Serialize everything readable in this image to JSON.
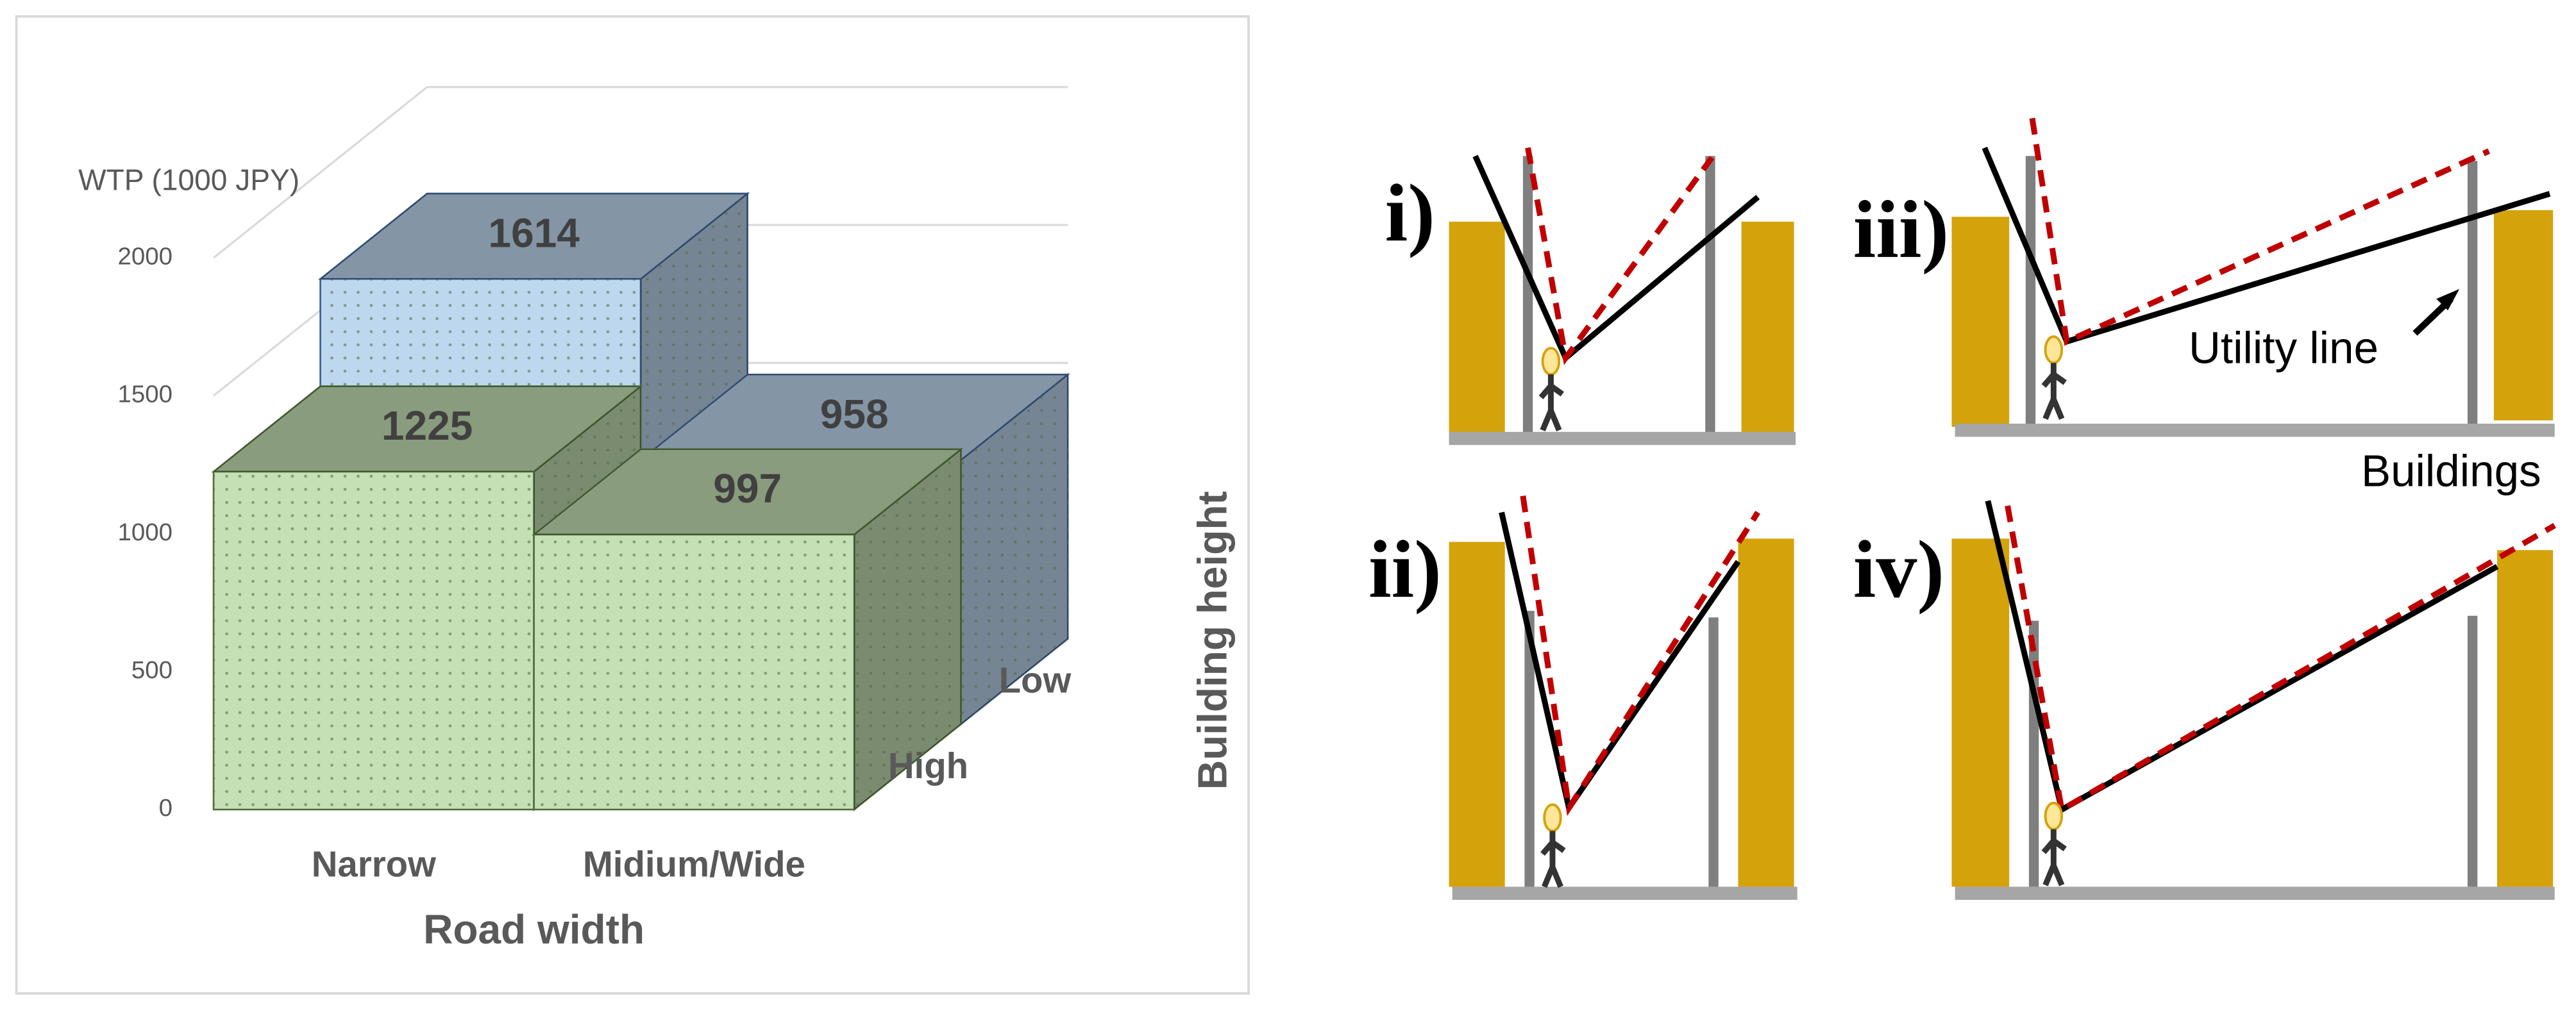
{
  "chart_data": {
    "type": "bar3d",
    "y_label": "WTP (1000 JPY)",
    "x_label": "Road width",
    "z_label": "Building height",
    "categories": [
      "Narrow",
      "Midium/Wide"
    ],
    "series": [
      {
        "name": "High",
        "color": "#c5e0b4",
        "values": [
          1225,
          997
        ]
      },
      {
        "name": "Low",
        "color": "#bdd7ee",
        "values": [
          1614,
          958
        ]
      }
    ],
    "ylim": [
      0,
      2000
    ],
    "yticks": [
      0,
      500,
      1000,
      1500,
      2000
    ],
    "grid": true
  },
  "diagram": {
    "panels": [
      "i)",
      "ii)",
      "iii)",
      "iv)"
    ],
    "callout": "Utility line",
    "legend": "Buildings"
  }
}
